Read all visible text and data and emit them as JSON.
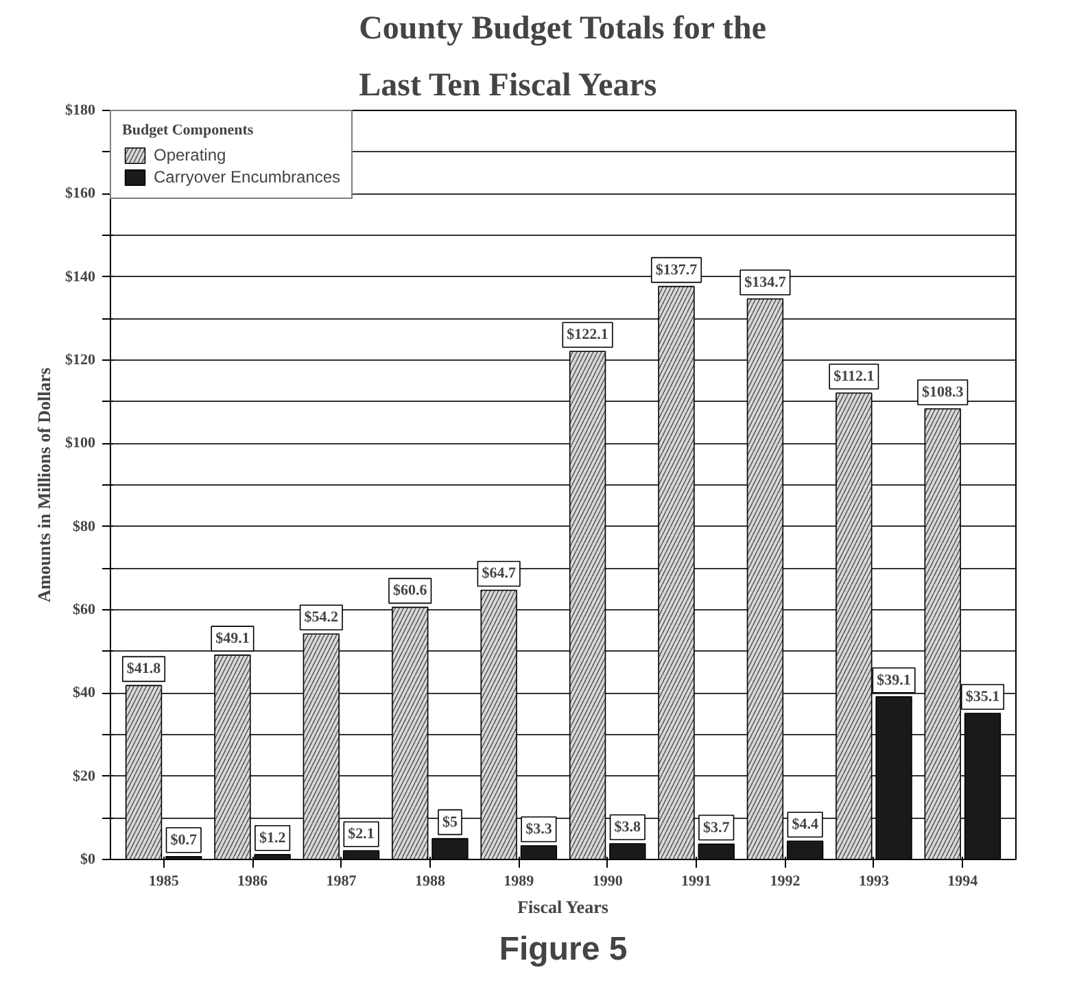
{
  "chart_data": {
    "type": "bar",
    "title": "County Budget Totals for the\nLast Ten Fiscal Years",
    "xlabel": "Fiscal Years",
    "ylabel": "Amounts in Millions of Dollars",
    "legend_title": "Budget Components",
    "legend": "top left",
    "grid": "y",
    "categories": [
      "1985",
      "1986",
      "1987",
      "1988",
      "1989",
      "1990",
      "1991",
      "1992",
      "1993",
      "1994"
    ],
    "series": [
      {
        "name": "Operating",
        "color": "#d9d9d9",
        "values": [
          41.8,
          49.1,
          54.2,
          60.6,
          64.7,
          122.1,
          137.7,
          134.7,
          112.1,
          108.3
        ],
        "value_labels": [
          "$41.8",
          "$49.1",
          "$54.2",
          "$60.6",
          "$64.7",
          "$122.1",
          "$137.7",
          "$134.7",
          "$112.1",
          "$108.3"
        ]
      },
      {
        "name": "Carryover Encumbrances",
        "color": "#1a1a1a",
        "values": [
          0.7,
          1.2,
          2.1,
          5,
          3.3,
          3.8,
          3.7,
          4.4,
          39.1,
          35.1
        ],
        "value_labels": [
          "$0.7",
          "$1.2",
          "$2.1",
          "$5",
          "$3.3",
          "$3.8",
          "$3.7",
          "$4.4",
          "$39.1",
          "$35.1"
        ]
      }
    ],
    "ylim": [
      0,
      180
    ],
    "yticks": [
      {
        "value": 0,
        "label": "$0"
      },
      {
        "value": 10,
        "label": null
      },
      {
        "value": 20,
        "label": "$20"
      },
      {
        "value": 30,
        "label": null
      },
      {
        "value": 40,
        "label": "$40"
      },
      {
        "value": 50,
        "label": null
      },
      {
        "value": 60,
        "label": "$60"
      },
      {
        "value": 70,
        "label": null
      },
      {
        "value": 80,
        "label": "$80"
      },
      {
        "value": 90,
        "label": null
      },
      {
        "value": 100,
        "label": "$100"
      },
      {
        "value": 110,
        "label": null
      },
      {
        "value": 120,
        "label": "$120"
      },
      {
        "value": 130,
        "label": null
      },
      {
        "value": 140,
        "label": "$140"
      },
      {
        "value": 150,
        "label": null
      },
      {
        "value": 160,
        "label": "$160"
      },
      {
        "value": 170,
        "label": null
      },
      {
        "value": 180,
        "label": "$180"
      }
    ],
    "annotations": [
      "Figure 5"
    ]
  }
}
